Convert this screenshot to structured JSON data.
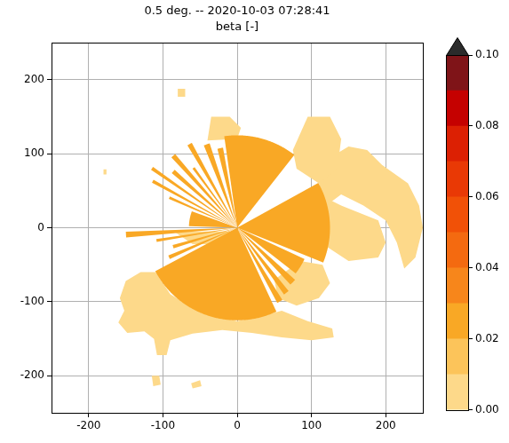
{
  "chart_data": {
    "type": "heatmap",
    "title": "0.5 deg. -- 2020-10-03 07:28:41",
    "subtitle": "beta [-]",
    "xlim": [
      -250,
      250
    ],
    "ylim": [
      -250,
      250
    ],
    "xticks": [
      -200,
      -100,
      0,
      100,
      200
    ],
    "yticks": [
      -200,
      -100,
      0,
      100,
      200
    ],
    "grid": true,
    "regions": [
      {
        "value": 0.005,
        "points": [
          [
            -110,
            -60
          ],
          [
            -130,
            -60
          ],
          [
            -150,
            -72
          ],
          [
            -158,
            -95
          ],
          [
            -152,
            -112
          ],
          [
            -160,
            -128
          ],
          [
            -148,
            -142
          ],
          [
            -125,
            -140
          ],
          [
            -112,
            -150
          ],
          [
            -108,
            -172
          ],
          [
            -95,
            -172
          ],
          [
            -90,
            -152
          ],
          [
            -60,
            -143
          ],
          [
            -20,
            -138
          ],
          [
            20,
            -142
          ],
          [
            60,
            -148
          ],
          [
            100,
            -152
          ],
          [
            130,
            -148
          ],
          [
            128,
            -136
          ],
          [
            95,
            -126
          ],
          [
            60,
            -112
          ],
          [
            30,
            -120
          ],
          [
            0,
            -126
          ],
          [
            -50,
            -114
          ],
          [
            -90,
            -90
          ]
        ]
      },
      {
        "value": 0.005,
        "points": [
          [
            50,
            -70
          ],
          [
            85,
            -45
          ],
          [
            115,
            -50
          ],
          [
            125,
            -75
          ],
          [
            110,
            -95
          ],
          [
            80,
            -105
          ],
          [
            55,
            -95
          ]
        ]
      },
      {
        "value": 0.005,
        "points": [
          [
            70,
            30
          ],
          [
            110,
            45
          ],
          [
            140,
            30
          ],
          [
            190,
            10
          ],
          [
            200,
            -20
          ],
          [
            190,
            -40
          ],
          [
            150,
            -45
          ],
          [
            120,
            -25
          ],
          [
            95,
            0
          ]
        ]
      },
      {
        "value": 0.005,
        "points": [
          [
            110,
            60
          ],
          [
            125,
            95
          ],
          [
            150,
            110
          ],
          [
            175,
            105
          ],
          [
            195,
            85
          ],
          [
            230,
            60
          ],
          [
            245,
            30
          ],
          [
            250,
            0
          ],
          [
            240,
            -40
          ],
          [
            225,
            -55
          ],
          [
            215,
            -20
          ],
          [
            200,
            10
          ],
          [
            170,
            30
          ],
          [
            140,
            45
          ],
          [
            120,
            30
          ]
        ]
      },
      {
        "value": 0.005,
        "points": [
          [
            75,
            105
          ],
          [
            95,
            150
          ],
          [
            125,
            150
          ],
          [
            140,
            120
          ],
          [
            135,
            80
          ],
          [
            110,
            60
          ],
          [
            80,
            80
          ]
        ]
      },
      {
        "value": 0.005,
        "points": [
          [
            -40,
            118
          ],
          [
            -35,
            150
          ],
          [
            -10,
            150
          ],
          [
            5,
            135
          ],
          [
            0,
            120
          ]
        ]
      },
      {
        "value": 0.005,
        "points": [
          [
            -85,
            -5
          ],
          [
            -60,
            -22
          ],
          [
            -10,
            -22
          ],
          [
            -5,
            -5
          ]
        ]
      },
      {
        "value": 0.005,
        "points": [
          [
            -180,
            72
          ],
          [
            -176,
            72
          ],
          [
            -176,
            79
          ],
          [
            -180,
            79
          ]
        ]
      },
      {
        "value": 0.005,
        "points": [
          [
            -80,
            177
          ],
          [
            -70,
            177
          ],
          [
            -70,
            188
          ],
          [
            -80,
            188
          ]
        ]
      },
      {
        "value": 0.005,
        "points": [
          [
            -115,
            -200
          ],
          [
            -105,
            -200
          ],
          [
            -103,
            -212
          ],
          [
            -113,
            -214
          ]
        ]
      },
      {
        "value": 0.005,
        "points": [
          [
            -62,
            -210
          ],
          [
            -50,
            -206
          ],
          [
            -48,
            -214
          ],
          [
            -60,
            -217
          ]
        ]
      }
    ],
    "sectors": [
      {
        "value": 0.025,
        "az": [
          208,
          295
        ],
        "r": 125
      },
      {
        "value": 0.025,
        "az": [
          -22,
          29
        ],
        "r": 125
      },
      {
        "value": 0.025,
        "az": [
          -62,
          -58
        ],
        "r": 115
      },
      {
        "value": 0.025,
        "az": [
          -55,
          -51
        ],
        "r": 110
      },
      {
        "value": 0.025,
        "az": [
          -47,
          -42
        ],
        "r": 105
      },
      {
        "value": 0.025,
        "az": [
          -38,
          -25
        ],
        "r": 100
      },
      {
        "value": 0.025,
        "az": [
          52,
          98
        ],
        "r": 125
      },
      {
        "value": 0.025,
        "az": [
          100,
          104
        ],
        "r": 110
      },
      {
        "value": 0.025,
        "az": [
          108,
          112
        ],
        "r": 120
      },
      {
        "value": 0.025,
        "az": [
          118,
          121
        ],
        "r": 130
      },
      {
        "value": 0.025,
        "az": [
          125,
          127
        ],
        "r": 100
      },
      {
        "value": 0.025,
        "az": [
          130,
          133
        ],
        "r": 130
      },
      {
        "value": 0.025,
        "az": [
          137,
          140
        ],
        "r": 115
      },
      {
        "value": 0.025,
        "az": [
          144,
          146
        ],
        "r": 140
      },
      {
        "value": 0.025,
        "az": [
          150,
          152
        ],
        "r": 130
      },
      {
        "value": 0.025,
        "az": [
          155,
          157
        ],
        "r": 100
      },
      {
        "value": 0.025,
        "az": [
          160,
          178
        ],
        "r": 65
      },
      {
        "value": 0.025,
        "az": [
          182,
          185
        ],
        "r": 150
      },
      {
        "value": 0.025,
        "az": [
          188,
          190
        ],
        "r": 110
      },
      {
        "value": 0.025,
        "az": [
          195,
          198
        ],
        "r": 90
      },
      {
        "value": 0.025,
        "az": [
          202,
          205
        ],
        "r": 100
      }
    ],
    "colorbar": {
      "bounds": [
        0,
        0.01,
        0.02,
        0.03,
        0.04,
        0.05,
        0.06,
        0.07,
        0.08,
        0.09,
        0.1
      ],
      "colors": [
        "#fdd98a",
        "#fcc45a",
        "#f9a825",
        "#f7861b",
        "#f46a10",
        "#f15107",
        "#e93905",
        "#dc2003",
        "#c50100",
        "#7f1418"
      ],
      "over_color": "#2b2b2b",
      "ticks": [
        {
          "value": 0,
          "label": "0.00"
        },
        {
          "value": 0.02,
          "label": "0.02"
        },
        {
          "value": 0.04,
          "label": "0.04"
        },
        {
          "value": 0.06,
          "label": "0.06"
        },
        {
          "value": 0.08,
          "label": "0.08"
        },
        {
          "value": 0.1,
          "label": "0.10"
        }
      ]
    }
  }
}
